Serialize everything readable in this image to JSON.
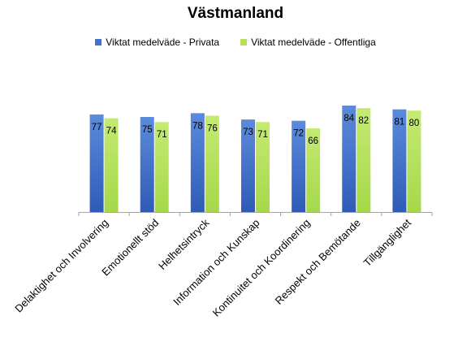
{
  "chart_data": {
    "type": "bar",
    "title": "Västmanland",
    "xlabel": "",
    "ylabel": "",
    "ylim": [
      0,
      100
    ],
    "grid": false,
    "legend_position": "top",
    "categories": [
      "Delaktighet och Involvering",
      "Emotionellt stöd",
      "Helhetsintryck",
      "Information och Kunskap",
      "Kontinuitet och Koordinering",
      "Respekt och Bemötande",
      "Tillgänglighet"
    ],
    "series": [
      {
        "name": "Viktat medelväde - Privata",
        "color": "#4472c4",
        "values": [
          77,
          75,
          78,
          73,
          72,
          84,
          81
        ]
      },
      {
        "name": "Viktat medelväde - Offentliga",
        "color": "#b4e05a",
        "values": [
          74,
          71,
          76,
          71,
          66,
          82,
          80
        ]
      }
    ]
  }
}
